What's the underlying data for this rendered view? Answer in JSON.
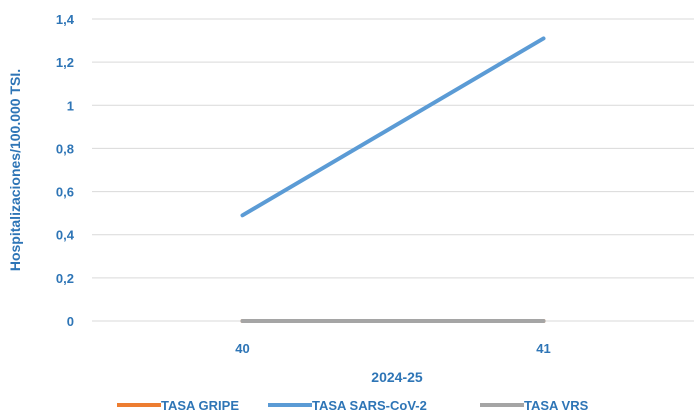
{
  "chart_data": {
    "type": "line",
    "categories": [
      "40",
      "41"
    ],
    "series": [
      {
        "name": "TASA GRIPE",
        "values": [
          0,
          0
        ],
        "color": "#ED7D31"
      },
      {
        "name": "TASA SARS-CoV-2",
        "values": [
          0.49,
          1.31
        ],
        "color": "#5B9BD5"
      },
      {
        "name": "TASA VRS",
        "values": [
          0,
          0
        ],
        "color": "#A5A5A5"
      }
    ],
    "title": "",
    "xlabel": "2024-25",
    "ylabel": "Hospitalizaciones/100.000 TSI.",
    "ylim": [
      0,
      1.4
    ],
    "yticks": [
      "0",
      "0,2",
      "0,4",
      "0,6",
      "0,8",
      "1",
      "1,2",
      "1,4"
    ],
    "grid": true,
    "legend": "bottom",
    "colors": {
      "axis_text": "#2E75B6",
      "gridline": "#D9D9D9"
    }
  }
}
